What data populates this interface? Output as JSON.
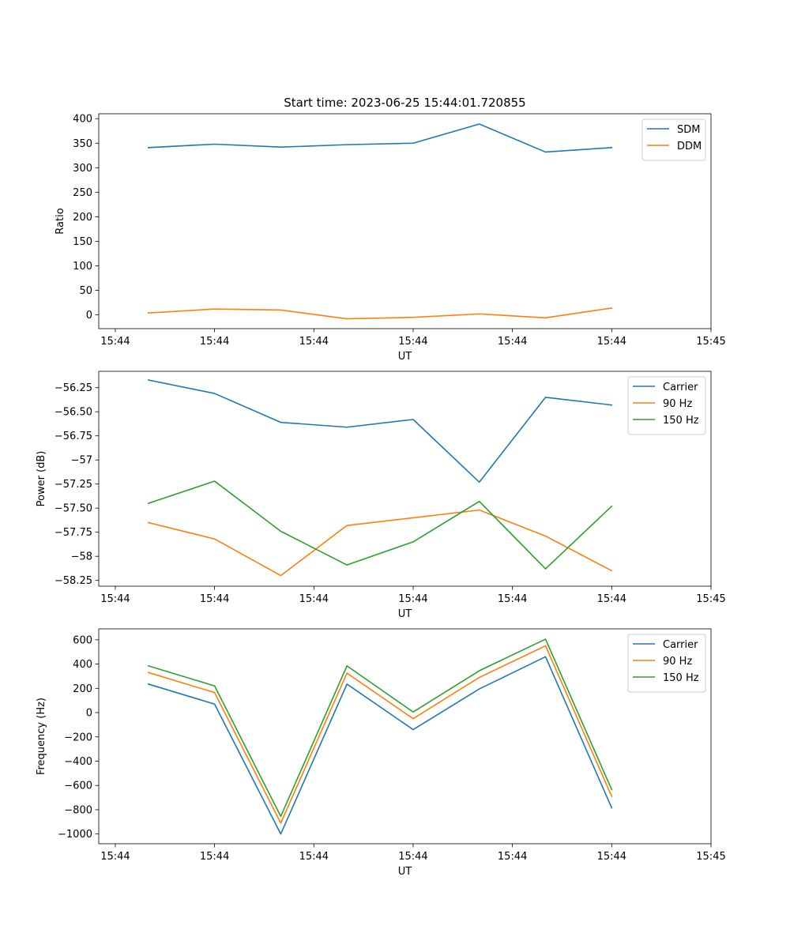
{
  "figure": {
    "title": "Start time: 2023-06-25 15:44:01.720855"
  },
  "chart_data": [
    {
      "type": "line",
      "title": "Start time: 2023-06-25 15:44:01.720855",
      "xlabel": "UT",
      "ylabel": "Ratio",
      "x": [
        "15:44:02",
        "15:44:04",
        "15:44:06",
        "15:44:08",
        "15:44:10",
        "15:44:12",
        "15:44:14",
        "15:44:16"
      ],
      "xlim": [
        "15:44:00.5",
        "15:44:19"
      ],
      "xticks": [
        "15:44",
        "15:44",
        "15:44",
        "15:44",
        "15:44",
        "15:44",
        "15:45"
      ],
      "yticks": [
        0,
        50,
        100,
        150,
        200,
        250,
        300,
        350,
        400
      ],
      "ylim": [
        -28,
        410
      ],
      "grid": false,
      "legend_position": "top-right",
      "series": [
        {
          "name": "SDM",
          "color": "#1f77b4",
          "values": [
            341,
            348,
            342,
            347,
            350,
            389,
            332,
            341
          ]
        },
        {
          "name": "DDM",
          "color": "#ff7f0e",
          "values": [
            4,
            12,
            10,
            -8,
            -5,
            2,
            -6,
            14
          ]
        }
      ]
    },
    {
      "type": "line",
      "xlabel": "UT",
      "ylabel": "Power (dB)",
      "x": [
        "15:44:02",
        "15:44:04",
        "15:44:06",
        "15:44:08",
        "15:44:10",
        "15:44:12",
        "15:44:14",
        "15:44:16"
      ],
      "xlim": [
        "15:44:00.5",
        "15:44:19"
      ],
      "xticks": [
        "15:44",
        "15:44",
        "15:44",
        "15:44",
        "15:44",
        "15:44",
        "15:45"
      ],
      "yticks": [
        -56.25,
        -56.5,
        -56.75,
        -57.0,
        -57.25,
        -57.5,
        -57.75,
        -58.0,
        -58.25
      ],
      "ylim": [
        -58.31,
        -56.08
      ],
      "grid": false,
      "legend_position": "top-right",
      "series": [
        {
          "name": "Carrier",
          "color": "#1f77b4",
          "values": [
            -56.17,
            -56.31,
            -56.61,
            -56.66,
            -56.58,
            -57.23,
            -56.35,
            -56.43
          ]
        },
        {
          "name": "90 Hz",
          "color": "#ff7f0e",
          "values": [
            -57.65,
            -57.82,
            -58.2,
            -57.68,
            -57.6,
            -57.52,
            -57.79,
            -58.15
          ]
        },
        {
          "name": "150 Hz",
          "color": "#2ca02c",
          "values": [
            -57.45,
            -57.22,
            -57.74,
            -58.09,
            -57.85,
            -57.43,
            -58.13,
            -57.48
          ]
        }
      ]
    },
    {
      "type": "line",
      "xlabel": "UT",
      "ylabel": "Frequency (Hz)",
      "x": [
        "15:44:02",
        "15:44:04",
        "15:44:06",
        "15:44:08",
        "15:44:10",
        "15:44:12",
        "15:44:14",
        "15:44:16"
      ],
      "xlim": [
        "15:44:00.5",
        "15:44:19"
      ],
      "xticks": [
        "15:44",
        "15:44",
        "15:44",
        "15:44",
        "15:44",
        "15:44",
        "15:45"
      ],
      "yticks": [
        -1000,
        -800,
        -600,
        -400,
        -200,
        0,
        200,
        400,
        600
      ],
      "ylim": [
        -1080,
        690
      ],
      "grid": false,
      "legend_position": "top-right",
      "series": [
        {
          "name": "Carrier",
          "color": "#1f77b4",
          "values": [
            235,
            70,
            -1000,
            235,
            -140,
            195,
            460,
            -785
          ]
        },
        {
          "name": "90 Hz",
          "color": "#ff7f0e",
          "values": [
            330,
            165,
            -910,
            325,
            -50,
            290,
            550,
            -690
          ]
        },
        {
          "name": "150 Hz",
          "color": "#2ca02c",
          "values": [
            385,
            220,
            -855,
            385,
            5,
            345,
            605,
            -635
          ]
        }
      ]
    }
  ]
}
